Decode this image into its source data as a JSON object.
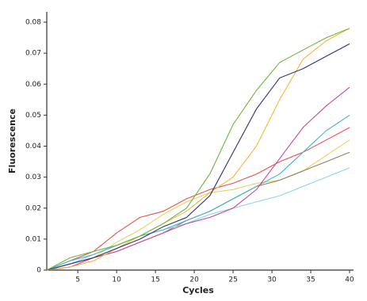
{
  "chart_data": {
    "type": "line",
    "x_label": "Cycles",
    "y_label": "Fluorescence",
    "x": [
      1,
      4,
      7,
      10,
      13,
      16,
      19,
      22,
      25,
      28,
      31,
      34,
      37,
      40
    ],
    "series": [
      {
        "color": "#e8504f",
        "values": [
          0,
          0.003,
          0.006,
          0.012,
          0.017,
          0.019,
          0.023,
          0.026,
          0.028,
          0.031,
          0.035,
          0.038,
          0.042,
          0.046
        ]
      },
      {
        "color": "#e8d25a",
        "values": [
          0,
          0.001,
          0.004,
          0.009,
          0.013,
          0.018,
          0.022,
          0.025,
          0.026,
          0.028,
          0.029,
          0.032,
          0.037,
          0.042
        ]
      },
      {
        "color": "#9c7a5a",
        "values": [
          0,
          0.002,
          0.004,
          0.006,
          0.009,
          0.012,
          0.016,
          0.019,
          0.023,
          0.027,
          0.029,
          0.032,
          0.035,
          0.038
        ]
      },
      {
        "color": "#8fd3e8",
        "values": [
          0,
          0.002,
          0.005,
          0.008,
          0.011,
          0.013,
          0.015,
          0.018,
          0.02,
          0.022,
          0.024,
          0.027,
          0.03,
          0.033
        ]
      },
      {
        "color": "#3fb6c8",
        "values": [
          0,
          0.003,
          0.005,
          0.008,
          0.011,
          0.013,
          0.016,
          0.019,
          0.023,
          0.027,
          0.031,
          0.038,
          0.045,
          0.05
        ]
      },
      {
        "color": "#c8489a",
        "values": [
          0,
          0.001,
          0.004,
          0.006,
          0.009,
          0.012,
          0.015,
          0.017,
          0.02,
          0.026,
          0.036,
          0.046,
          0.053,
          0.059
        ]
      },
      {
        "color": "#f2b640",
        "values": [
          0,
          0.001,
          0.003,
          0.007,
          0.011,
          0.015,
          0.019,
          0.025,
          0.03,
          0.04,
          0.055,
          0.068,
          0.074,
          0.078
        ]
      },
      {
        "color": "#2e2f7e",
        "values": [
          0,
          0.002,
          0.004,
          0.007,
          0.01,
          0.014,
          0.017,
          0.024,
          0.038,
          0.052,
          0.062,
          0.065,
          0.069,
          0.073
        ]
      },
      {
        "color": "#6ab63a",
        "values": [
          0,
          0.004,
          0.006,
          0.008,
          0.011,
          0.015,
          0.02,
          0.031,
          0.047,
          0.058,
          0.067,
          0.071,
          0.075,
          0.078
        ]
      }
    ],
    "xlim": [
      1,
      40
    ],
    "xticks": [
      5,
      10,
      15,
      20,
      25,
      30,
      35,
      40
    ],
    "ylim": [
      0,
      0.08
    ],
    "yticks": [
      0,
      0.01,
      0.02,
      0.03,
      0.04,
      0.05,
      0.06,
      0.07,
      0.08
    ]
  }
}
